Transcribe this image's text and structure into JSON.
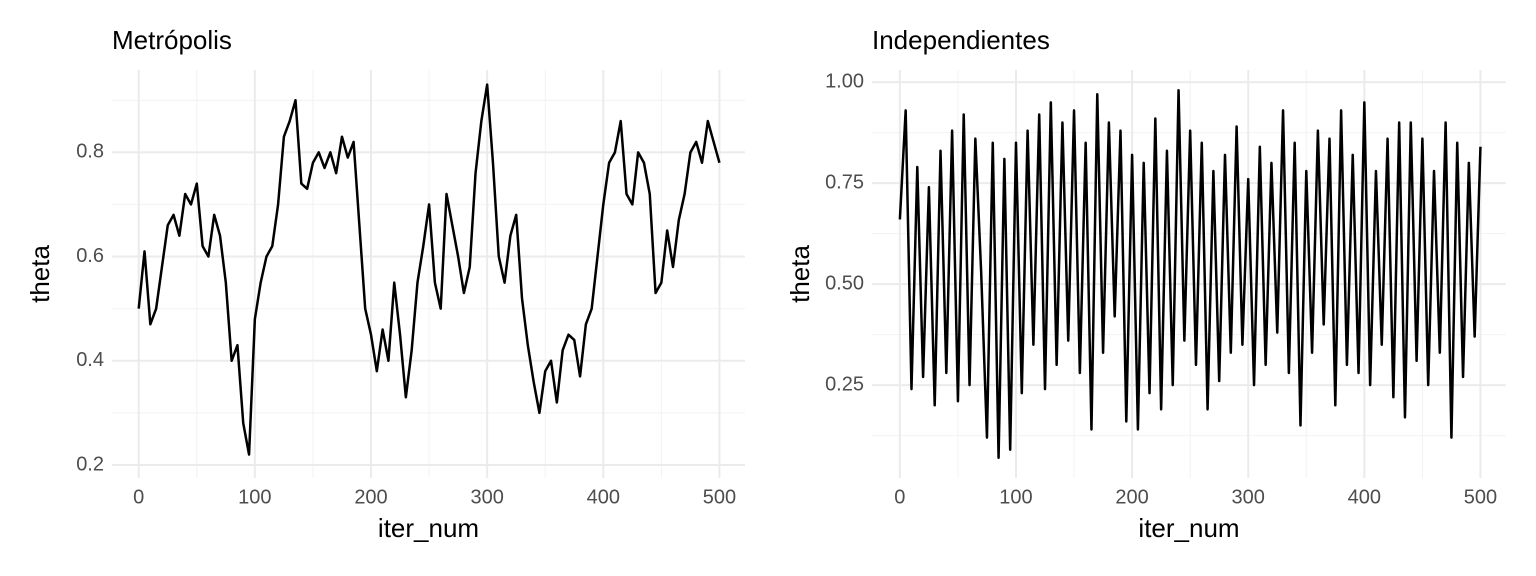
{
  "chart_data": [
    {
      "type": "line",
      "title": "Metrópolis",
      "xlabel": "iter_num",
      "ylabel": "theta",
      "color": "#000000",
      "x": [
        0,
        5,
        10,
        15,
        20,
        25,
        30,
        35,
        40,
        45,
        50,
        55,
        60,
        65,
        70,
        75,
        80,
        85,
        90,
        95,
        100,
        105,
        110,
        115,
        120,
        125,
        130,
        135,
        140,
        145,
        150,
        155,
        160,
        165,
        170,
        175,
        180,
        185,
        190,
        195,
        200,
        205,
        210,
        215,
        220,
        225,
        230,
        235,
        240,
        245,
        250,
        255,
        260,
        265,
        270,
        275,
        280,
        285,
        290,
        295,
        300,
        305,
        310,
        315,
        320,
        325,
        330,
        335,
        340,
        345,
        350,
        355,
        360,
        365,
        370,
        375,
        380,
        385,
        390,
        395,
        400,
        405,
        410,
        415,
        420,
        425,
        430,
        435,
        440,
        445,
        450,
        455,
        460,
        465,
        470,
        475,
        480,
        485,
        490,
        495,
        500
      ],
      "values": [
        0.5,
        0.61,
        0.47,
        0.5,
        0.58,
        0.66,
        0.68,
        0.64,
        0.72,
        0.7,
        0.74,
        0.62,
        0.6,
        0.68,
        0.64,
        0.55,
        0.4,
        0.43,
        0.28,
        0.22,
        0.48,
        0.55,
        0.6,
        0.62,
        0.7,
        0.83,
        0.86,
        0.9,
        0.74,
        0.73,
        0.78,
        0.8,
        0.77,
        0.8,
        0.76,
        0.83,
        0.79,
        0.82,
        0.66,
        0.5,
        0.45,
        0.38,
        0.46,
        0.4,
        0.55,
        0.45,
        0.33,
        0.42,
        0.55,
        0.62,
        0.7,
        0.55,
        0.5,
        0.72,
        0.66,
        0.6,
        0.53,
        0.58,
        0.76,
        0.86,
        0.93,
        0.78,
        0.6,
        0.55,
        0.64,
        0.68,
        0.52,
        0.43,
        0.36,
        0.3,
        0.38,
        0.4,
        0.32,
        0.42,
        0.45,
        0.44,
        0.37,
        0.47,
        0.5,
        0.6,
        0.7,
        0.78,
        0.8,
        0.86,
        0.72,
        0.7,
        0.8,
        0.78,
        0.72,
        0.53,
        0.55,
        0.65,
        0.58,
        0.67,
        0.72,
        0.8,
        0.82,
        0.78,
        0.86,
        0.82,
        0.78
      ],
      "xlim": [
        -23,
        522
      ],
      "ylim": [
        0.175,
        0.958
      ],
      "xticks": [
        0,
        100,
        200,
        300,
        400,
        500
      ],
      "yticks": [
        0.2,
        0.4,
        0.6,
        0.8
      ],
      "xminor": [
        50,
        150,
        250,
        350,
        450
      ],
      "yminor": [
        0.3,
        0.5,
        0.7,
        0.9
      ],
      "grid": true
    },
    {
      "type": "line",
      "title": "Independientes",
      "xlabel": "iter_num",
      "ylabel": "theta",
      "color": "#000000",
      "x": [
        0,
        5,
        10,
        15,
        20,
        25,
        30,
        35,
        40,
        45,
        50,
        55,
        60,
        65,
        70,
        75,
        80,
        85,
        90,
        95,
        100,
        105,
        110,
        115,
        120,
        125,
        130,
        135,
        140,
        145,
        150,
        155,
        160,
        165,
        170,
        175,
        180,
        185,
        190,
        195,
        200,
        205,
        210,
        215,
        220,
        225,
        230,
        235,
        240,
        245,
        250,
        255,
        260,
        265,
        270,
        275,
        280,
        285,
        290,
        295,
        300,
        305,
        310,
        315,
        320,
        325,
        330,
        335,
        340,
        345,
        350,
        355,
        360,
        365,
        370,
        375,
        380,
        385,
        390,
        395,
        400,
        405,
        410,
        415,
        420,
        425,
        430,
        435,
        440,
        445,
        450,
        455,
        460,
        465,
        470,
        475,
        480,
        485,
        490,
        495,
        500
      ],
      "values": [
        0.66,
        0.93,
        0.24,
        0.79,
        0.27,
        0.74,
        0.2,
        0.83,
        0.28,
        0.88,
        0.21,
        0.92,
        0.25,
        0.86,
        0.53,
        0.12,
        0.85,
        0.07,
        0.81,
        0.09,
        0.85,
        0.23,
        0.88,
        0.35,
        0.92,
        0.24,
        0.95,
        0.3,
        0.9,
        0.36,
        0.93,
        0.28,
        0.85,
        0.14,
        0.97,
        0.33,
        0.9,
        0.42,
        0.88,
        0.16,
        0.82,
        0.14,
        0.8,
        0.23,
        0.91,
        0.19,
        0.83,
        0.25,
        0.98,
        0.36,
        0.88,
        0.3,
        0.85,
        0.19,
        0.78,
        0.26,
        0.82,
        0.33,
        0.89,
        0.35,
        0.76,
        0.25,
        0.84,
        0.3,
        0.8,
        0.38,
        0.93,
        0.28,
        0.85,
        0.15,
        0.78,
        0.33,
        0.88,
        0.4,
        0.86,
        0.2,
        0.93,
        0.3,
        0.82,
        0.28,
        0.95,
        0.25,
        0.78,
        0.35,
        0.86,
        0.22,
        0.9,
        0.17,
        0.9,
        0.31,
        0.86,
        0.25,
        0.78,
        0.33,
        0.9,
        0.12,
        0.85,
        0.27,
        0.8,
        0.37,
        0.84
      ],
      "xlim": [
        -24,
        522
      ],
      "ylim": [
        0.02,
        1.03
      ],
      "xticks": [
        0,
        100,
        200,
        300,
        400,
        500
      ],
      "yticks": [
        0.25,
        {
          "value": 0.5,
          "label": "0.50"
        },
        0.75,
        {
          "value": 1,
          "label": "1.00"
        }
      ],
      "xminor": [
        50,
        150,
        250,
        350,
        450
      ],
      "yminor": [
        0.125,
        0.375,
        0.625,
        0.875
      ],
      "grid": true
    }
  ]
}
